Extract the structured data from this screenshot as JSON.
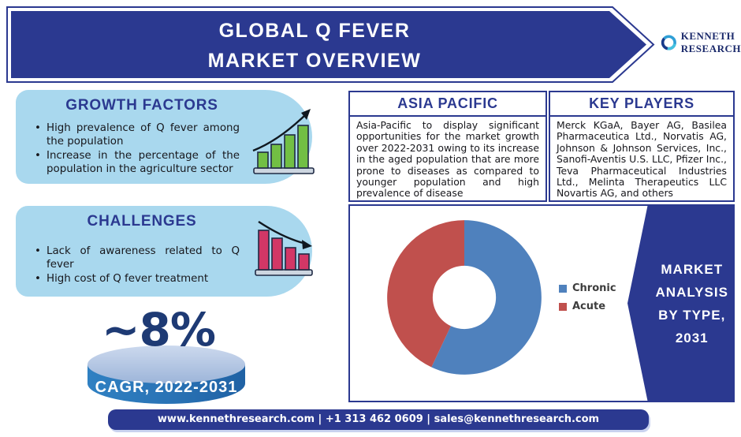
{
  "header": {
    "title_line1": "GLOBAL Q FEVER",
    "title_line2": "MARKET OVERVIEW"
  },
  "logo": {
    "line1": "KENNETH",
    "line2": "RESEARCH"
  },
  "growth_factors": {
    "title": "GROWTH FACTORS",
    "bullets": [
      "High prevalence of Q fever among the population",
      "Increase in the percentage of the population in the agriculture sector"
    ],
    "icon": "rising-bar-chart-icon"
  },
  "challenges": {
    "title": "CHALLENGES",
    "bullets": [
      "Lack of awareness related to Q fever",
      "High cost of Q fever treatment"
    ],
    "icon": "declining-bar-chart-icon"
  },
  "cagr": {
    "value": "~8%",
    "label": "CAGR, 2022-2031"
  },
  "asia_pacific": {
    "title": "ASIA PACIFIC",
    "body": "Asia-Pacific to display significant opportunities for the market growth over 2022-2031 owing to its increase in the aged population that are more prone to diseases as compared to younger population and high prevalence of disease"
  },
  "key_players": {
    "title": "KEY PLAYERS",
    "body": "Merck KGaA, Bayer AG, Basilea Pharmaceutica Ltd., Norvatis AG, Johnson & Johnson Services, Inc., Sanofi-Aventis U.S. LLC, Pfizer Inc., Teva Pharmaceutical Industries Ltd., Melinta Therapeutics LLC Novartis AG, and others"
  },
  "market_analysis": {
    "lines": [
      "MARKET",
      "ANALYSIS",
      "BY TYPE,",
      "2031"
    ]
  },
  "chart_data": {
    "type": "pie",
    "subtype": "donut",
    "labels": [
      "Chronic",
      "Acute"
    ],
    "values": [
      57,
      43
    ],
    "colors": [
      "#4f81bd",
      "#c0504d"
    ],
    "legend_position": "right",
    "inner_radius_ratio": 0.41
  },
  "footer": {
    "text": "www.kennethresearch.com | +1 313 462 0609 | sales@kennethresearch.com"
  },
  "colors": {
    "primary_navy": "#2b3990",
    "light_blue_card": "#a9d8ee",
    "growth_green": "#72bf44",
    "challenge_pink": "#d23766",
    "chronic_blue": "#4f81bd",
    "acute_red": "#c0504d",
    "disc_blue": "#2c79ba",
    "cagr_navy": "#1e3a74"
  }
}
